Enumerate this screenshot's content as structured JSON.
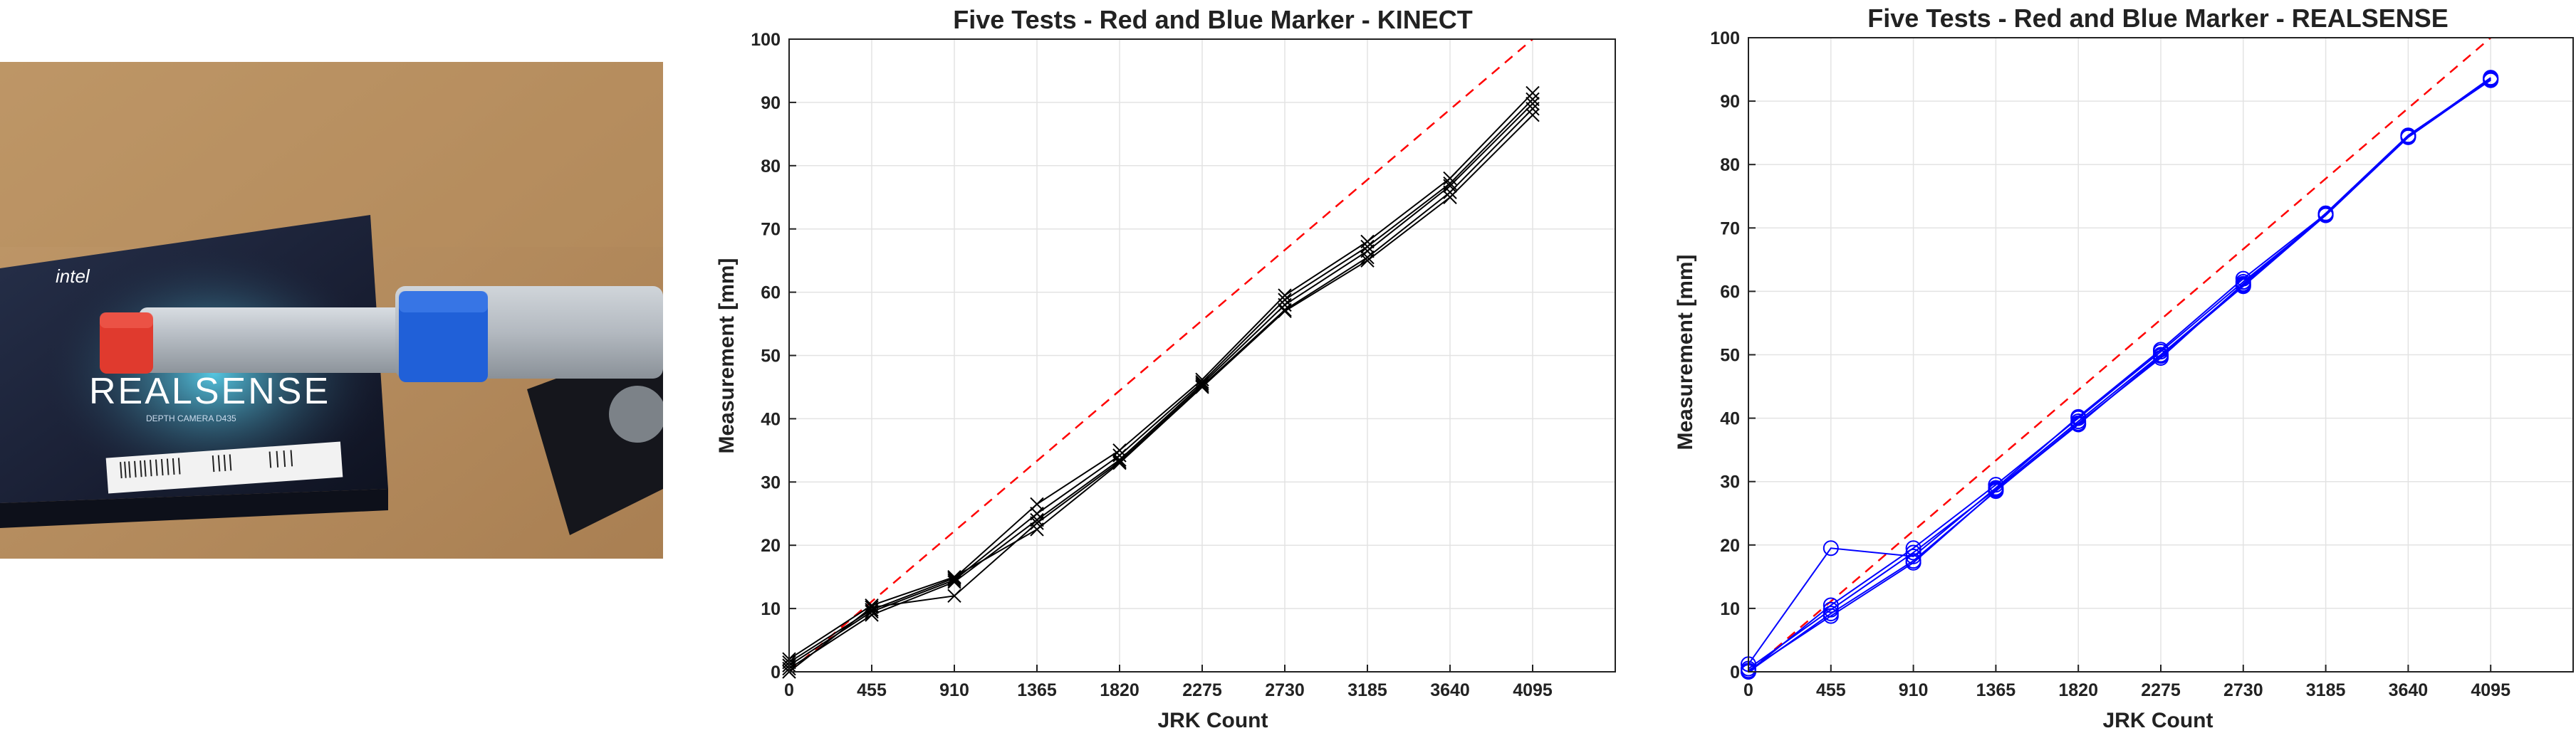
{
  "photo": {
    "box_brand": "intel",
    "box_product": "REALSENSE",
    "box_subtitle": "DEPTH CAMERA D435"
  },
  "chart_data": [
    {
      "type": "line",
      "title": "Five Tests - Red and Blue Marker - KINECT",
      "xlabel": "JRK Count",
      "ylabel": "Measurement [mm]",
      "xticks": [
        0,
        455,
        910,
        1365,
        1820,
        2275,
        2730,
        3185,
        3640,
        4095
      ],
      "yticks": [
        0,
        10,
        20,
        30,
        40,
        50,
        60,
        70,
        80,
        90,
        100
      ],
      "xlim": [
        0,
        4550
      ],
      "ylim": [
        0,
        100
      ],
      "grid": true,
      "line_color": "#000000",
      "marker": "x",
      "reference_line": {
        "style": "dashed",
        "color": "#ff0000",
        "x": [
          0,
          4095
        ],
        "y": [
          0,
          100
        ]
      },
      "x": [
        0,
        455,
        910,
        1365,
        1820,
        2275,
        2730,
        3185,
        3640,
        4095
      ],
      "series": [
        {
          "values": [
            1.5,
            9.8,
            14.8,
            26.5,
            35.0,
            46.2,
            59.5,
            68.0,
            78.0,
            91.5
          ]
        },
        {
          "values": [
            1.0,
            9.5,
            14.5,
            25.0,
            34.2,
            45.8,
            58.8,
            67.2,
            77.2,
            90.5
          ]
        },
        {
          "values": [
            0.5,
            9.0,
            14.2,
            24.0,
            33.5,
            45.5,
            58.0,
            66.5,
            76.8,
            89.8
          ]
        },
        {
          "values": [
            0.0,
            10.2,
            12.0,
            23.5,
            33.2,
            45.2,
            57.2,
            65.5,
            75.8,
            89.0
          ]
        },
        {
          "values": [
            2.0,
            10.5,
            15.0,
            22.5,
            33.0,
            45.0,
            57.0,
            65.0,
            75.0,
            88.0
          ]
        }
      ]
    },
    {
      "type": "line",
      "title": "Five Tests - Red and Blue Marker - REALSENSE",
      "xlabel": "JRK Count",
      "ylabel": "Measurement [mm]",
      "xticks": [
        0,
        455,
        910,
        1365,
        1820,
        2275,
        2730,
        3185,
        3640,
        4095
      ],
      "yticks": [
        0,
        10,
        20,
        30,
        40,
        50,
        60,
        70,
        80,
        90,
        100
      ],
      "xlim": [
        0,
        4550
      ],
      "ylim": [
        0,
        100
      ],
      "grid": true,
      "line_color": "#0000ff",
      "marker": "o",
      "reference_line": {
        "style": "dashed",
        "color": "#ff0000",
        "x": [
          0,
          4095
        ],
        "y": [
          0,
          100
        ]
      },
      "x": [
        0,
        455,
        910,
        1365,
        1820,
        2275,
        2730,
        3185,
        3640,
        4095
      ],
      "series": [
        {
          "values": [
            1.2,
            19.5,
            18.2,
            29.0,
            40.2,
            50.8,
            62.0,
            72.2,
            84.5,
            93.6
          ]
        },
        {
          "values": [
            0.0,
            10.5,
            19.5,
            29.5,
            40.0,
            50.5,
            61.5,
            72.0,
            84.3,
            93.4
          ]
        },
        {
          "values": [
            0.5,
            9.8,
            18.8,
            28.8,
            39.5,
            50.0,
            61.0,
            72.3,
            84.6,
            93.5
          ]
        },
        {
          "values": [
            0.0,
            9.2,
            17.5,
            28.5,
            39.2,
            49.5,
            61.2,
            72.1,
            84.4,
            93.7
          ]
        },
        {
          "values": [
            0.2,
            8.8,
            17.2,
            28.6,
            39.0,
            49.8,
            60.8,
            72.0,
            84.5,
            93.3
          ]
        }
      ]
    }
  ]
}
